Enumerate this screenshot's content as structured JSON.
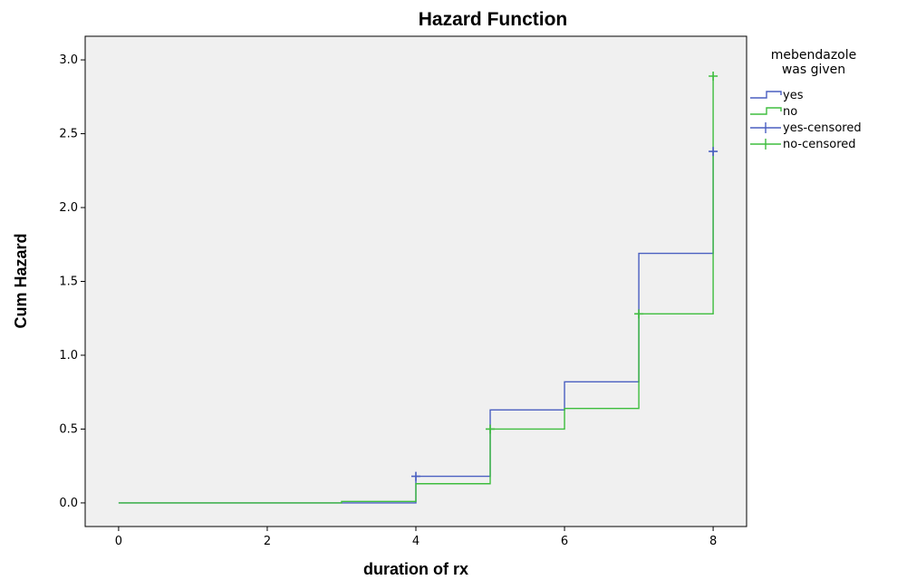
{
  "chart_data": {
    "type": "line",
    "title": "Hazard Function",
    "xlabel": "duration of rx",
    "ylabel": "Cum Hazard",
    "xlim": [
      -0.45,
      8.45
    ],
    "ylim": [
      -0.16,
      3.16
    ],
    "xticks": [
      0,
      2,
      4,
      6,
      8
    ],
    "xtick_labels": [
      "0",
      "2",
      "4",
      "6",
      "8"
    ],
    "yticks": [
      0.0,
      0.5,
      1.0,
      1.5,
      2.0,
      2.5,
      3.0
    ],
    "ytick_labels": [
      "0.0",
      "0.5",
      "1.0",
      "1.5",
      "2.0",
      "2.5",
      "3.0"
    ],
    "grid": false,
    "step": true,
    "background": "#f0f0f0",
    "legend": {
      "title_lines": [
        "mebendazole",
        "was given"
      ],
      "placement": "right",
      "entries": [
        {
          "label": "yes",
          "kind": "line",
          "color": "#4a5fc1"
        },
        {
          "label": "no",
          "kind": "line",
          "color": "#3ebd3e"
        },
        {
          "label": "yes-censored",
          "kind": "censor",
          "color": "#4a5fc1"
        },
        {
          "label": "no-censored",
          "kind": "censor",
          "color": "#3ebd3e"
        }
      ]
    },
    "series": [
      {
        "name": "yes",
        "color": "#4a5fc1",
        "x": [
          0,
          4,
          5,
          6,
          7,
          8
        ],
        "y": [
          0.0,
          0.18,
          0.63,
          0.82,
          1.69,
          2.38
        ],
        "censored": [
          {
            "x": 4,
            "y": 0.18
          },
          {
            "x": 8,
            "y": 2.38
          }
        ]
      },
      {
        "name": "no",
        "color": "#3ebd3e",
        "x": [
          0,
          3,
          4,
          5,
          6,
          7,
          8
        ],
        "y": [
          0.0,
          0.01,
          0.13,
          0.5,
          0.64,
          1.28,
          2.89
        ],
        "censored": [
          {
            "x": 5,
            "y": 0.5
          },
          {
            "x": 7,
            "y": 1.28
          },
          {
            "x": 8,
            "y": 2.89
          }
        ]
      }
    ]
  }
}
